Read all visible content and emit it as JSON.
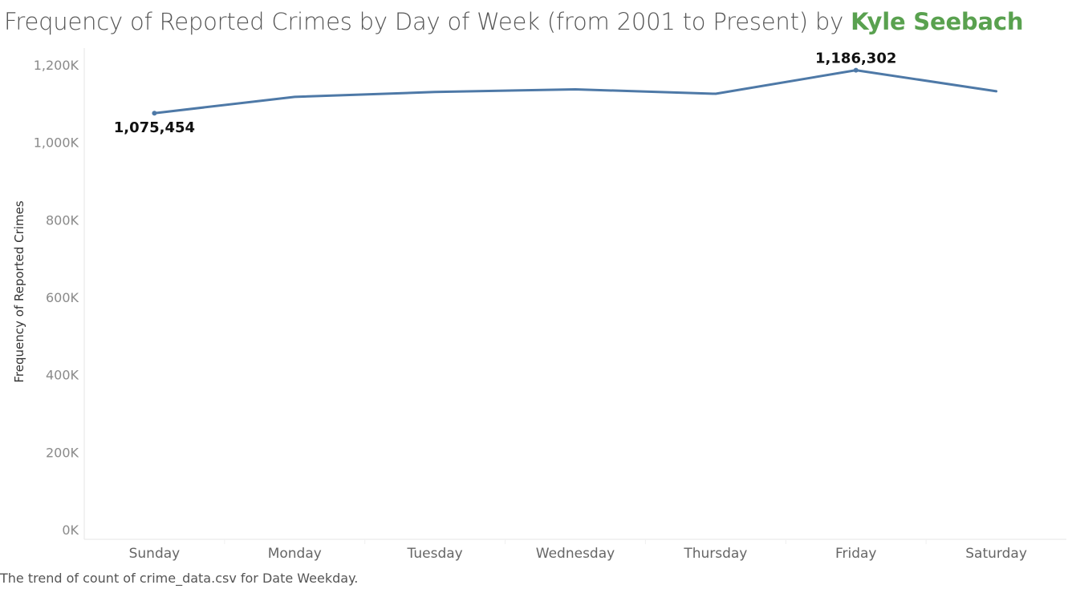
{
  "header": {
    "title_main": "Frequency of Reported Crimes by Day of Week (from 2001 to Present) by ",
    "title_author": "Kyle Seebach"
  },
  "caption": "The trend of count of crime_data.csv for Date Weekday.",
  "colors": {
    "line": "#4e79a7",
    "author": "#59a14f",
    "axis": "#e6e6e6"
  },
  "chart_data": {
    "type": "line",
    "categories": [
      "Sunday",
      "Monday",
      "Tuesday",
      "Wednesday",
      "Thursday",
      "Friday",
      "Saturday"
    ],
    "values": [
      1075454,
      1117500,
      1130000,
      1137000,
      1125500,
      1186302,
      1132000
    ],
    "ylabel": "Frequency of Reported Crimes",
    "ylim": [
      0,
      1250000
    ],
    "yticks": [
      {
        "value": 0,
        "label": "0K"
      },
      {
        "value": 200000,
        "label": "200K"
      },
      {
        "value": 400000,
        "label": "400K"
      },
      {
        "value": 600000,
        "label": "600K"
      },
      {
        "value": 800000,
        "label": "800K"
      },
      {
        "value": 1000000,
        "label": "1,000K"
      },
      {
        "value": 1200000,
        "label": "1,200K"
      }
    ],
    "data_labels": [
      {
        "index": 0,
        "text": "1,075,454",
        "position": "below"
      },
      {
        "index": 5,
        "text": "1,186,302",
        "position": "above"
      }
    ],
    "grid": false,
    "legend": "none"
  }
}
